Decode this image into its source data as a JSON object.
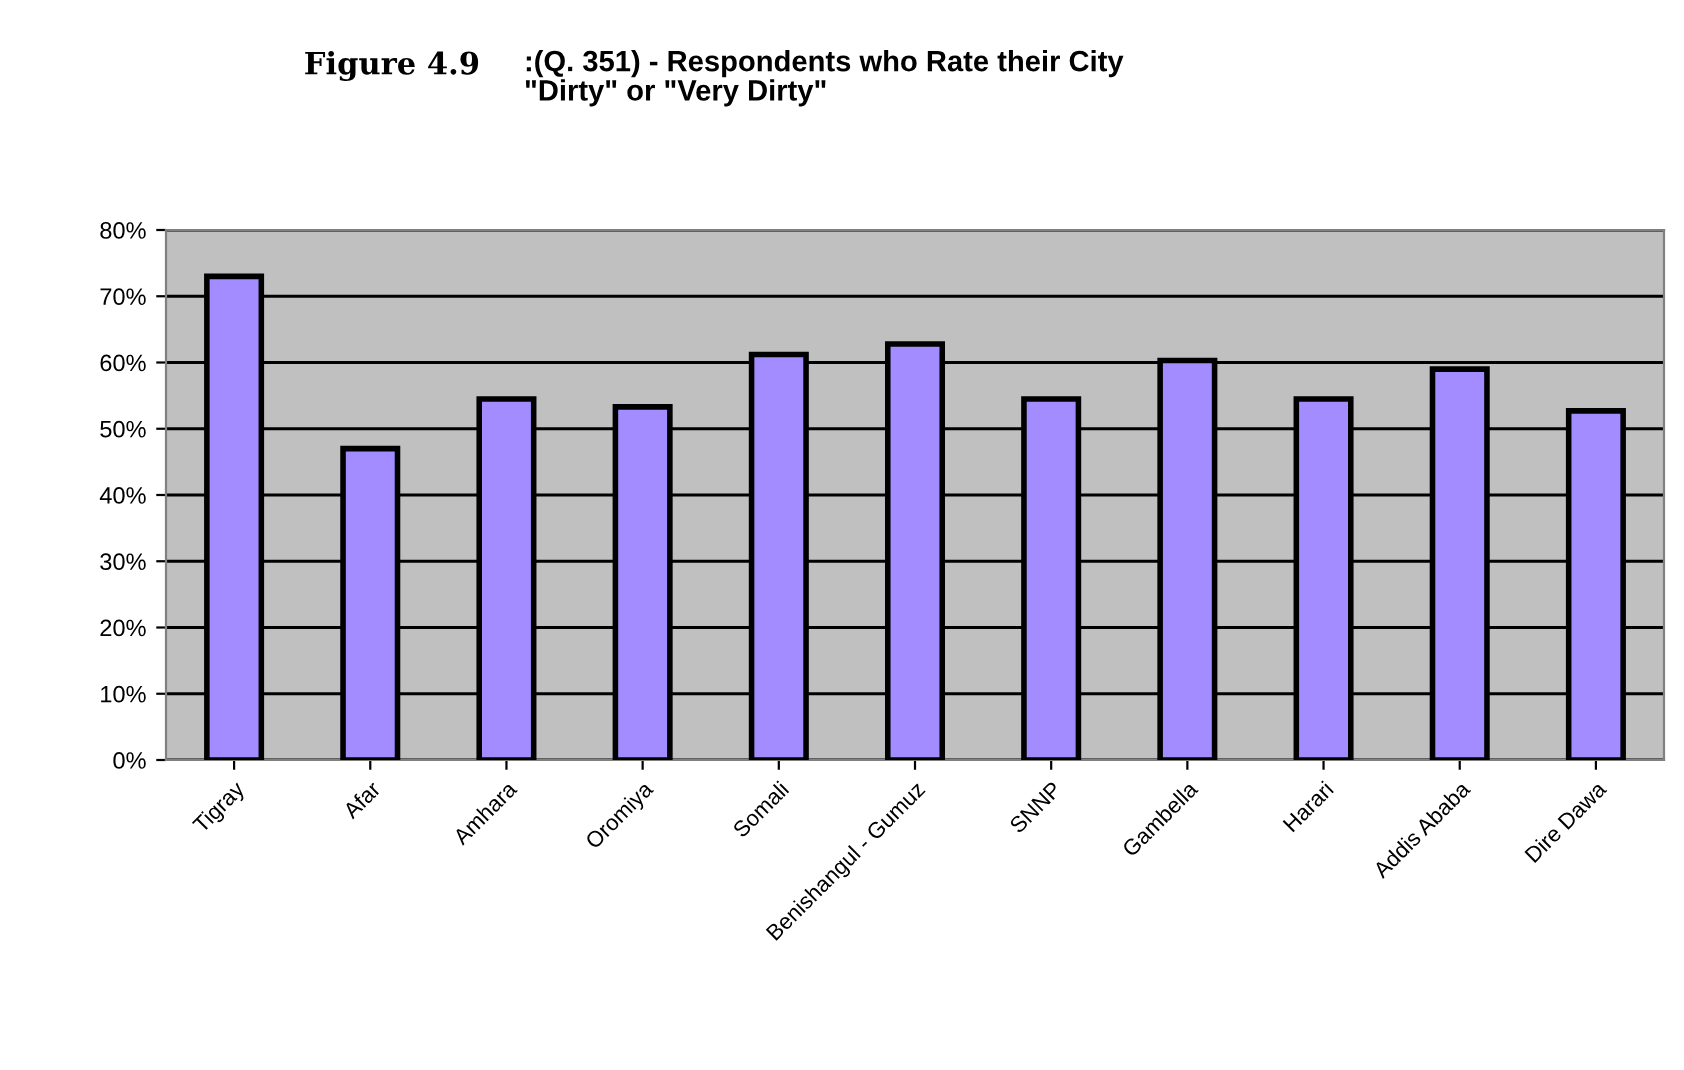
{
  "chart_data": {
    "type": "bar",
    "title": "Figure 4.9",
    "subtitle": ":(Q. 351) - Respondents who Rate their City\n\"Dirty\" or \"Very Dirty\"",
    "categories": [
      "Tigray",
      "Afar",
      "Amhara",
      "Oromiya",
      "Somali",
      "Benishangul - Gumuz",
      "SNNP",
      "Gambella",
      "Harari",
      "Addis Ababa",
      "Dire Dawa"
    ],
    "values": [
      0.73,
      0.47,
      0.545,
      0.533,
      0.612,
      0.628,
      0.545,
      0.603,
      0.545,
      0.59,
      0.527
    ],
    "color": "#a28cff",
    "ylim": [
      0,
      0.8
    ],
    "yticks": [
      {
        "value": 0,
        "label": "0%"
      },
      {
        "value": 0.1,
        "label": "10%"
      },
      {
        "value": 0.2,
        "label": "20%"
      },
      {
        "value": 0.3,
        "label": "30%"
      },
      {
        "value": 0.4,
        "label": "40%"
      },
      {
        "value": 0.5,
        "label": "50%"
      },
      {
        "value": 0.6,
        "label": "60%"
      },
      {
        "value": 0.7,
        "label": "70%"
      },
      {
        "value": 0.8,
        "label": "80%"
      }
    ],
    "grid": "y",
    "legend": false
  }
}
